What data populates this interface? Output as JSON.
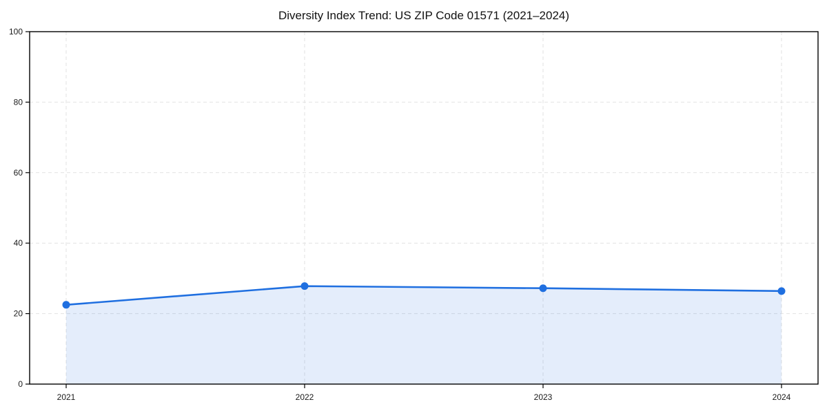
{
  "page": {
    "background": "#ffffff"
  },
  "chart_data": {
    "type": "line",
    "title": "Diversity Index Trend: US ZIP Code 01571 (2021–2024)",
    "categories": [
      "2021",
      "2022",
      "2023",
      "2024"
    ],
    "series": [
      {
        "name": "Diversity Index",
        "values": [
          22.5,
          27.8,
          27.2,
          26.4
        ]
      }
    ],
    "xlabel": "",
    "ylabel": "",
    "ylim": [
      0,
      100
    ],
    "yticks": [
      0,
      20,
      40,
      60,
      80,
      100
    ],
    "grid": true,
    "grid_style": "dashed",
    "legend_position": "none",
    "line_color": "#1f6fe0",
    "marker_color": "#1f6fe0",
    "fill_color": "rgba(31, 111, 224, 0.12)",
    "grid_color": "#e2e2e2",
    "axis_color": "#000000",
    "area_fill_under_line": true
  }
}
